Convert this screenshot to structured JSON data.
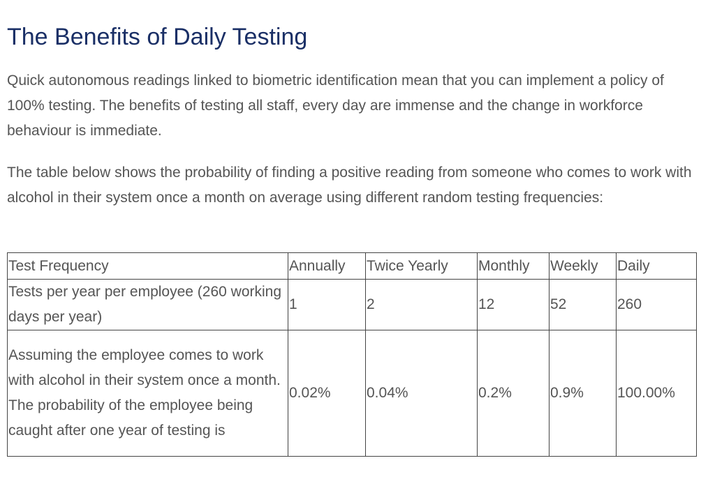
{
  "heading": "The Benefits of Daily Testing",
  "paragraphs": [
    "Quick autonomous readings linked to biometric identification mean that you can implement a policy of 100% testing. The benefits of testing all staff, every day are immense and the change in workforce behaviour is immediate.",
    "The table below shows the probability of finding a positive reading from someone who comes to work with alcohol in their system once a month on average using different random testing frequencies:"
  ],
  "table": {
    "header": [
      "Test Frequency",
      "Annually",
      "Twice Yearly",
      "Monthly",
      "Weekly",
      "Daily"
    ],
    "rows": [
      [
        "Tests per year per employee (260 working days per year)",
        "1",
        "2",
        "12",
        "52",
        "260"
      ],
      [
        "Assuming the employee comes to work with alcohol in their system once a month. The probability of the employee being caught after one year of testing is",
        "0.02%",
        "0.04%",
        "0.2%",
        "0.9%",
        "100.00%"
      ]
    ]
  },
  "colors": {
    "heading": "#1a2f66",
    "body_text": "#555555",
    "table_border": "#444444",
    "background": "#ffffff"
  }
}
